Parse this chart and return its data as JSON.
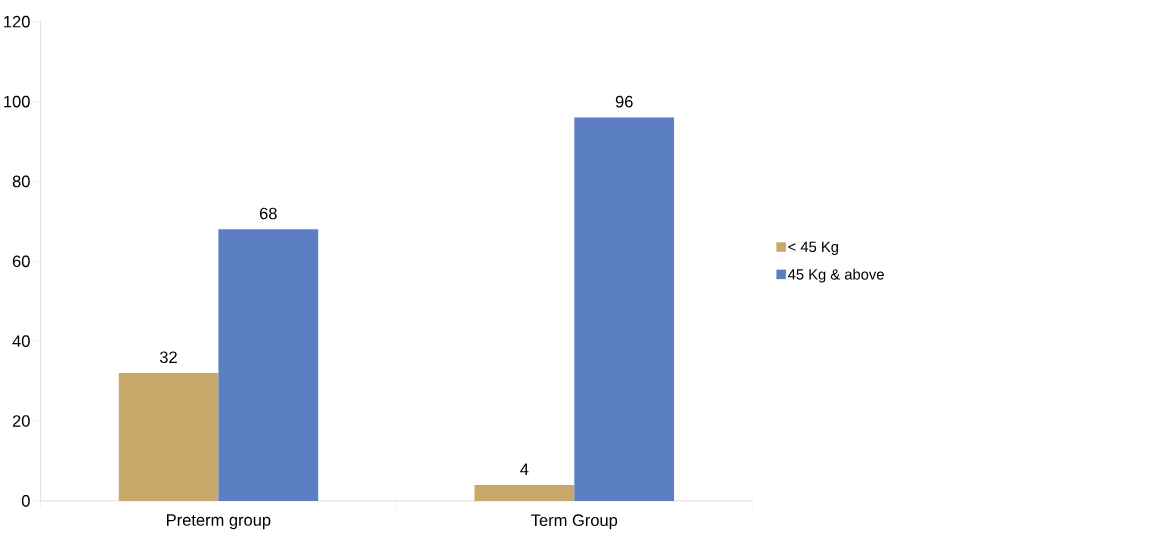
{
  "chart_data": {
    "type": "bar",
    "categories": [
      "Preterm group",
      "Term Group"
    ],
    "series": [
      {
        "name": "< 45 Kg",
        "color": "#c9a86c",
        "values": [
          32,
          4
        ]
      },
      {
        "name": "45 Kg & above",
        "color": "#5b7fc2",
        "values": [
          68,
          96
        ]
      }
    ],
    "ylim": [
      0,
      120
    ],
    "yticks": [
      0,
      20,
      40,
      60,
      80,
      100,
      120
    ],
    "data_labels": true,
    "legend": "right",
    "grid": false
  }
}
